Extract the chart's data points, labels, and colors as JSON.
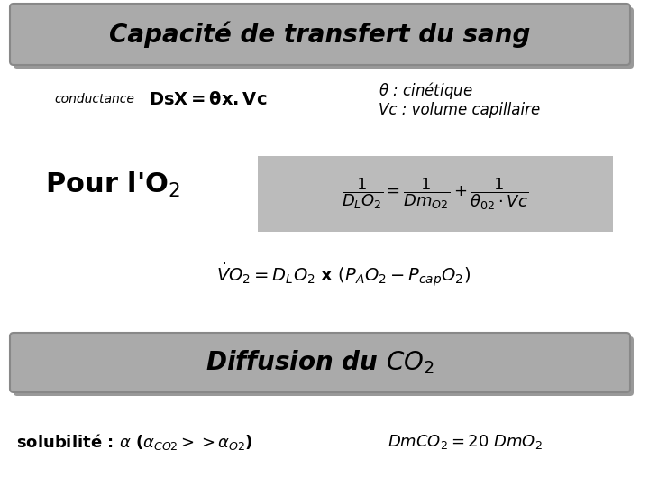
{
  "bg_color": "#ffffff",
  "title_box_color": "#aaaaaa",
  "title_text": "Capacité de transfert du sang",
  "title_fontsize": 20,
  "formula_box_color": "#bbbbbb",
  "diffusion_box_color": "#aaaaaa",
  "diffusion_text": "Diffusion du $CO_2$",
  "diffusion_fontsize": 20
}
